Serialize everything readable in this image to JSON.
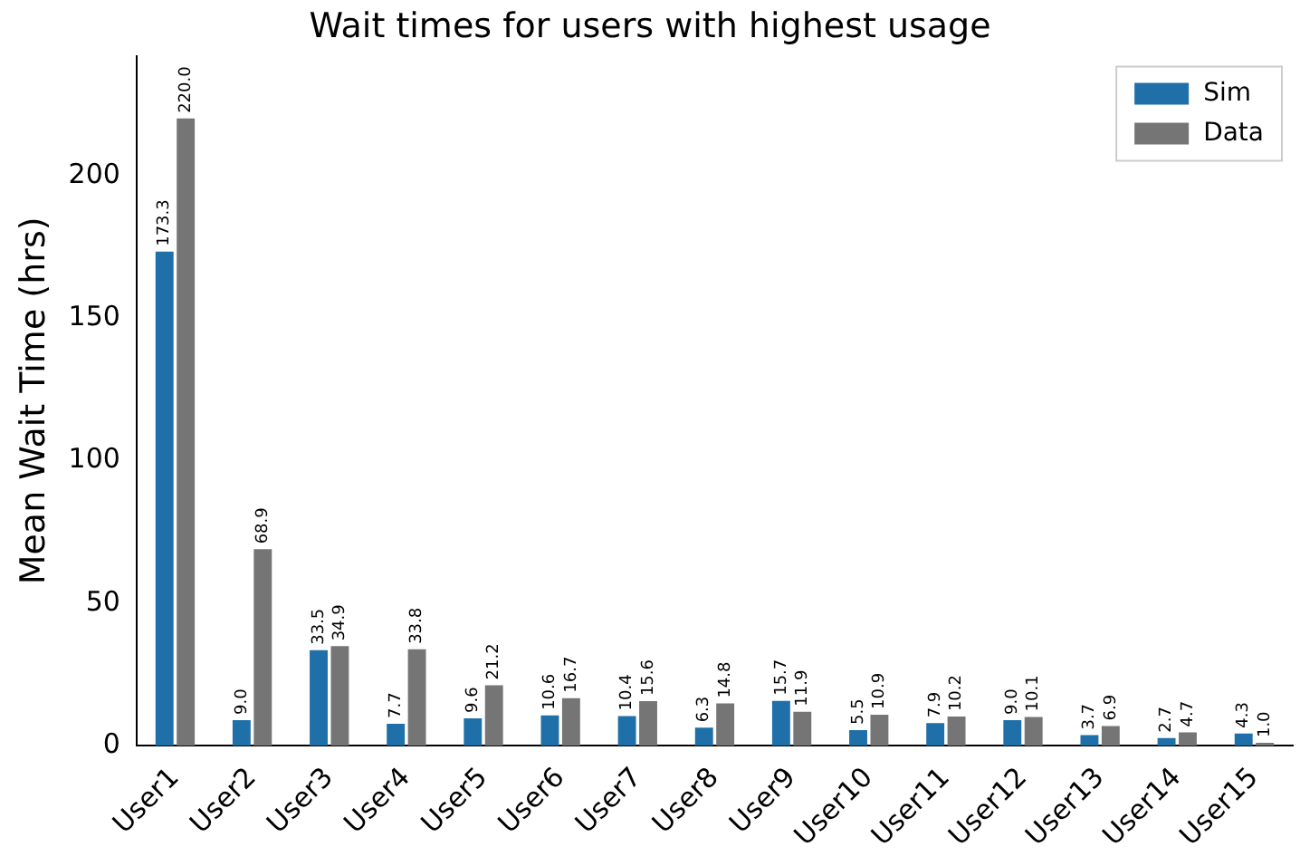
{
  "chart_data": {
    "type": "bar",
    "title": "Wait times for users with highest usage",
    "ylabel": "Mean Wait Time (hrs)",
    "categories": [
      "User1",
      "User2",
      "User3",
      "User4",
      "User5",
      "User6",
      "User7",
      "User8",
      "User9",
      "User10",
      "User11",
      "User12",
      "User13",
      "User14",
      "User15"
    ],
    "series": [
      {
        "name": "Sim",
        "color": "#1f6fa8",
        "values": [
          173.3,
          9.0,
          33.5,
          7.7,
          9.6,
          10.6,
          10.4,
          6.3,
          15.7,
          5.5,
          7.9,
          9.0,
          3.7,
          2.7,
          4.3
        ],
        "value_labels": [
          "173.3",
          "9.0",
          "33.5",
          "7.7",
          "9.6",
          "10.6",
          "10.4",
          "6.3",
          "15.7",
          "5.5",
          "7.9",
          "9.0",
          "3.7",
          "2.7",
          "4.3"
        ]
      },
      {
        "name": "Data",
        "color": "#757575",
        "values": [
          220.0,
          68.9,
          34.9,
          33.8,
          21.2,
          16.7,
          15.6,
          14.8,
          11.9,
          10.9,
          10.2,
          10.1,
          6.9,
          4.7,
          1.0
        ],
        "value_labels": [
          "220.0",
          "68.9",
          "34.9",
          "33.8",
          "21.2",
          "16.7",
          "15.6",
          "14.8",
          "11.9",
          "10.9",
          "10.2",
          "10.1",
          "6.9",
          "4.7",
          "1.0"
        ]
      }
    ],
    "ylim": [
      0,
      242
    ],
    "yticks": [
      0,
      50,
      100,
      150,
      200
    ],
    "grid": false,
    "legend": "top right"
  }
}
